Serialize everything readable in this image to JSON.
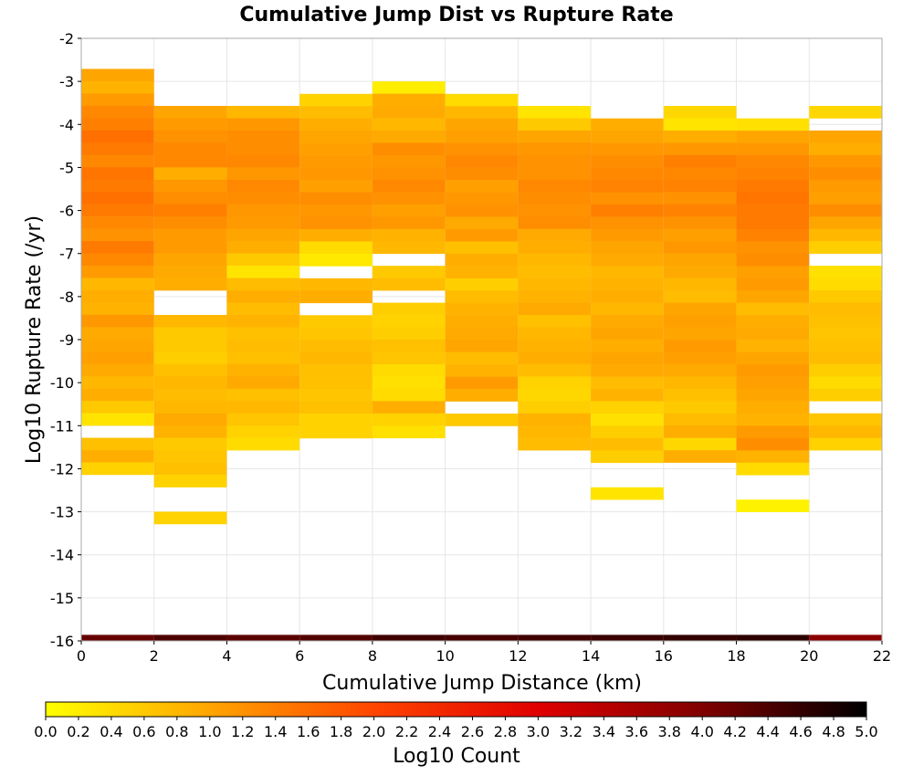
{
  "chart_data": {
    "type": "heatmap",
    "title": "Cumulative Jump Dist vs Rupture Rate",
    "xlabel": "Cumulative Jump Distance (km)",
    "ylabel": "Log10 Rupture Rate (/yr)",
    "xlim": [
      0,
      22
    ],
    "ylim": [
      -16,
      -2
    ],
    "x_ticks": [
      "0",
      "2",
      "4",
      "6",
      "8",
      "10",
      "12",
      "14",
      "16",
      "18",
      "20",
      "22"
    ],
    "y_ticks": [
      "-2",
      "-3",
      "-4",
      "-5",
      "-6",
      "-7",
      "-8",
      "-9",
      "-10",
      "-11",
      "-12",
      "-13",
      "-14",
      "-15",
      "-16"
    ],
    "grid": true,
    "bin_width": 2,
    "y_bin_height": 0.2857,
    "colorbar": {
      "label": "Log10 Count",
      "min": 0.0,
      "max": 5.0,
      "ticks": [
        "0.0",
        "0.2",
        "0.4",
        "0.6",
        "0.8",
        "1.0",
        "1.2",
        "1.4",
        "1.6",
        "1.8",
        "2.0",
        "2.2",
        "2.4",
        "2.6",
        "2.8",
        "3.0",
        "3.2",
        "3.4",
        "3.6",
        "3.8",
        "4.0",
        "4.2",
        "4.4",
        "4.6",
        "4.8",
        "5.0"
      ],
      "colors": [
        "#ffff00",
        "#ffa500",
        "#ff4500",
        "#e00000",
        "#800000",
        "#000000"
      ]
    },
    "columns": [
      {
        "x_start": 0,
        "y_top": -2.71,
        "values": [
          1.0,
          0.85,
          1.1,
          1.3,
          1.4,
          1.55,
          1.45,
          1.3,
          1.5,
          1.45,
          1.55,
          1.45,
          1.3,
          1.2,
          1.45,
          1.3,
          1.1,
          0.8,
          0.9,
          0.85,
          1.15,
          0.95,
          1.0,
          1.05,
          0.95,
          0.8,
          0.9,
          0.6,
          0.3,
          null,
          0.7,
          0.9,
          0.5
        ]
      },
      {
        "x_start": 2,
        "y_top": -3.57,
        "values": [
          1.0,
          1.1,
          1.2,
          1.3,
          1.3,
          0.9,
          1.15,
          1.25,
          1.4,
          1.25,
          1.1,
          1.1,
          1.0,
          0.95,
          0.9,
          null,
          null,
          0.8,
          0.6,
          0.6,
          0.55,
          0.7,
          0.8,
          0.75,
          0.8,
          0.95,
          0.85,
          0.6,
          0.65,
          0.7,
          0.5,
          null,
          null,
          0.5
        ]
      },
      {
        "x_start": 4,
        "y_top": -3.57,
        "values": [
          0.8,
          1.15,
          1.25,
          1.25,
          1.3,
          1.15,
          1.3,
          1.25,
          1.15,
          1.1,
          1.0,
          0.9,
          0.6,
          0.3,
          0.75,
          0.9,
          0.75,
          0.85,
          0.7,
          0.75,
          0.7,
          0.85,
          0.95,
          0.7,
          0.8,
          0.65,
          0.5,
          0.4
        ]
      },
      {
        "x_start": 6,
        "y_top": -3.29,
        "values": [
          0.5,
          0.75,
          0.9,
          1.0,
          1.05,
          1.1,
          1.15,
          1.05,
          1.25,
          1.15,
          1.2,
          0.9,
          0.4,
          0.25,
          null,
          0.8,
          0.9,
          null,
          0.6,
          0.65,
          0.75,
          0.8,
          0.7,
          0.7,
          0.65,
          0.7,
          0.5,
          0.5
        ]
      },
      {
        "x_start": 8,
        "y_top": -3.0,
        "values": [
          0.2,
          0.9,
          0.95,
          0.8,
          0.95,
          1.25,
          1.15,
          1.2,
          1.3,
          1.2,
          1.05,
          1.15,
          0.85,
          0.8,
          null,
          0.6,
          0.75,
          null,
          0.55,
          0.5,
          0.55,
          0.7,
          0.65,
          0.4,
          0.35,
          0.4,
          0.9,
          0.5,
          0.35
        ]
      },
      {
        "x_start": 10,
        "y_top": -3.29,
        "values": [
          0.4,
          0.8,
          1.0,
          1.05,
          1.2,
          1.3,
          1.25,
          1.05,
          1.15,
          1.2,
          0.95,
          1.1,
          0.7,
          0.9,
          0.85,
          0.55,
          0.75,
          0.85,
          0.9,
          0.95,
          1.0,
          0.75,
          0.85,
          1.1,
          0.9,
          null,
          0.6
        ]
      },
      {
        "x_start": 12,
        "y_top": -3.57,
        "values": [
          0.3,
          0.6,
          1.0,
          1.15,
          1.2,
          1.2,
          1.3,
          1.25,
          1.2,
          1.25,
          0.95,
          0.9,
          0.8,
          0.75,
          0.8,
          0.85,
          0.95,
          0.7,
          0.8,
          0.85,
          0.9,
          0.75,
          0.5,
          0.45,
          0.55,
          0.85,
          0.8,
          0.75
        ]
      },
      {
        "x_start": 14,
        "y_top": -3.86,
        "values": [
          0.9,
          1.0,
          1.15,
          1.25,
          1.3,
          1.35,
          1.2,
          1.4,
          1.2,
          1.1,
          1.0,
          0.95,
          0.8,
          0.85,
          0.9,
          0.8,
          0.95,
          1.0,
          0.9,
          1.0,
          0.95,
          0.75,
          0.85,
          0.5,
          0.35,
          0.55,
          0.75,
          0.55,
          null,
          null,
          0.3
        ]
      },
      {
        "x_start": 16,
        "y_top": -3.57,
        "values": [
          0.45,
          0.3,
          0.9,
          1.15,
          1.4,
          1.3,
          1.35,
          1.2,
          1.35,
          1.2,
          1.05,
          1.15,
          1.0,
          0.95,
          0.8,
          0.75,
          1.0,
          1.05,
          1.0,
          1.1,
          1.05,
          0.95,
          0.8,
          0.7,
          0.6,
          0.75,
          0.9,
          0.45,
          0.9
        ]
      },
      {
        "x_start": 18,
        "y_top": -3.86,
        "values": [
          0.35,
          1.0,
          1.15,
          1.3,
          1.35,
          1.45,
          1.5,
          1.45,
          1.45,
          1.35,
          1.2,
          1.25,
          1.05,
          1.1,
          1.0,
          0.75,
          0.9,
          0.95,
          0.85,
          1.0,
          1.1,
          1.05,
          1.0,
          0.9,
          0.85,
          1.1,
          1.25,
          0.85,
          0.4,
          null,
          null,
          0.15
        ]
      },
      {
        "x_start": 20,
        "y_top": -3.57,
        "values": [
          0.45,
          null,
          1.0,
          0.9,
          1.15,
          1.25,
          1.1,
          1.05,
          1.25,
          1.0,
          0.8,
          0.55,
          null,
          0.35,
          0.4,
          0.6,
          0.75,
          0.7,
          0.65,
          0.7,
          0.75,
          0.55,
          0.4,
          0.55,
          null,
          0.65,
          0.8,
          0.5
        ]
      }
    ],
    "bottom_row": {
      "y_bottom": -16,
      "y_top": -15.86,
      "values": [
        4.2,
        4.4,
        4.3,
        4.35,
        4.5,
        4.45,
        4.5,
        4.55,
        4.6,
        4.65,
        3.9
      ]
    }
  }
}
